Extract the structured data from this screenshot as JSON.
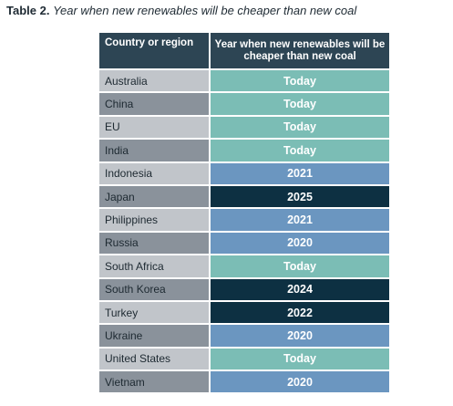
{
  "caption": {
    "label": "Table 2.",
    "text": "Year when new renewables will be cheaper than new coal"
  },
  "table": {
    "headers": [
      "Country or region",
      "Year when new renewables will be cheaper than new coal"
    ],
    "rows": [
      {
        "country": "Australia",
        "year": "Today",
        "tone": "today"
      },
      {
        "country": "China",
        "year": "Today",
        "tone": "today"
      },
      {
        "country": "EU",
        "year": "Today",
        "tone": "today"
      },
      {
        "country": "India",
        "year": "Today",
        "tone": "today"
      },
      {
        "country": "Indonesia",
        "year": "2021",
        "tone": "mid"
      },
      {
        "country": "Japan",
        "year": "2025",
        "tone": "dark"
      },
      {
        "country": "Philippines",
        "year": "2021",
        "tone": "mid"
      },
      {
        "country": "Russia",
        "year": "2020",
        "tone": "mid"
      },
      {
        "country": "South Africa",
        "year": "Today",
        "tone": "today"
      },
      {
        "country": "South Korea",
        "year": "2024",
        "tone": "dark"
      },
      {
        "country": "Turkey",
        "year": "2022",
        "tone": "dark"
      },
      {
        "country": "Ukraine",
        "year": "2020",
        "tone": "mid"
      },
      {
        "country": "United States",
        "year": "Today",
        "tone": "today"
      },
      {
        "country": "Vietnam",
        "year": "2020",
        "tone": "mid"
      }
    ]
  },
  "colors": {
    "header_bg": "#2d4554",
    "country_light": "#c1c5ca",
    "country_dark": "#8a929b",
    "year_today": "#7bbdb5",
    "year_mid": "#6b96c0",
    "year_dark": "#0d3042"
  }
}
